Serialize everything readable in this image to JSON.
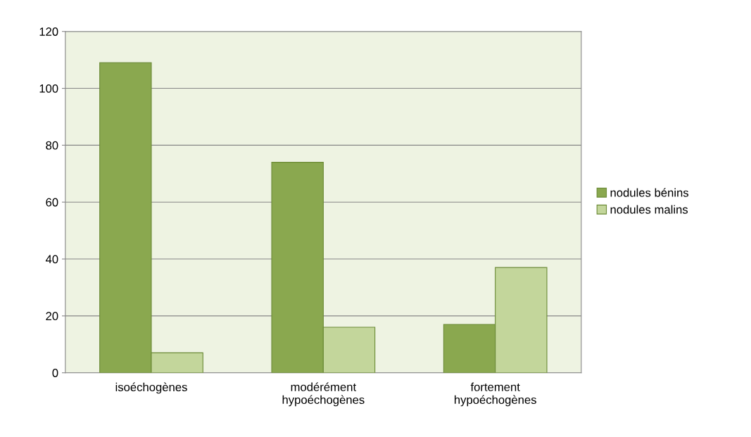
{
  "chart_data": {
    "type": "bar",
    "categories": [
      "isoéchogènes",
      "modérément\nhypoéchogènes",
      "fortement\nhypoéchogènes"
    ],
    "series": [
      {
        "name": "nodules bénins",
        "color": "#8aa84f",
        "values": [
          109,
          74,
          17
        ]
      },
      {
        "name": "nodules malins",
        "color": "#c3d69b",
        "values": [
          7,
          16,
          37
        ]
      }
    ],
    "ylim": [
      0,
      120
    ],
    "yticks": [
      0,
      20,
      40,
      60,
      80,
      100,
      120
    ],
    "grid": "y",
    "legend": "right"
  }
}
